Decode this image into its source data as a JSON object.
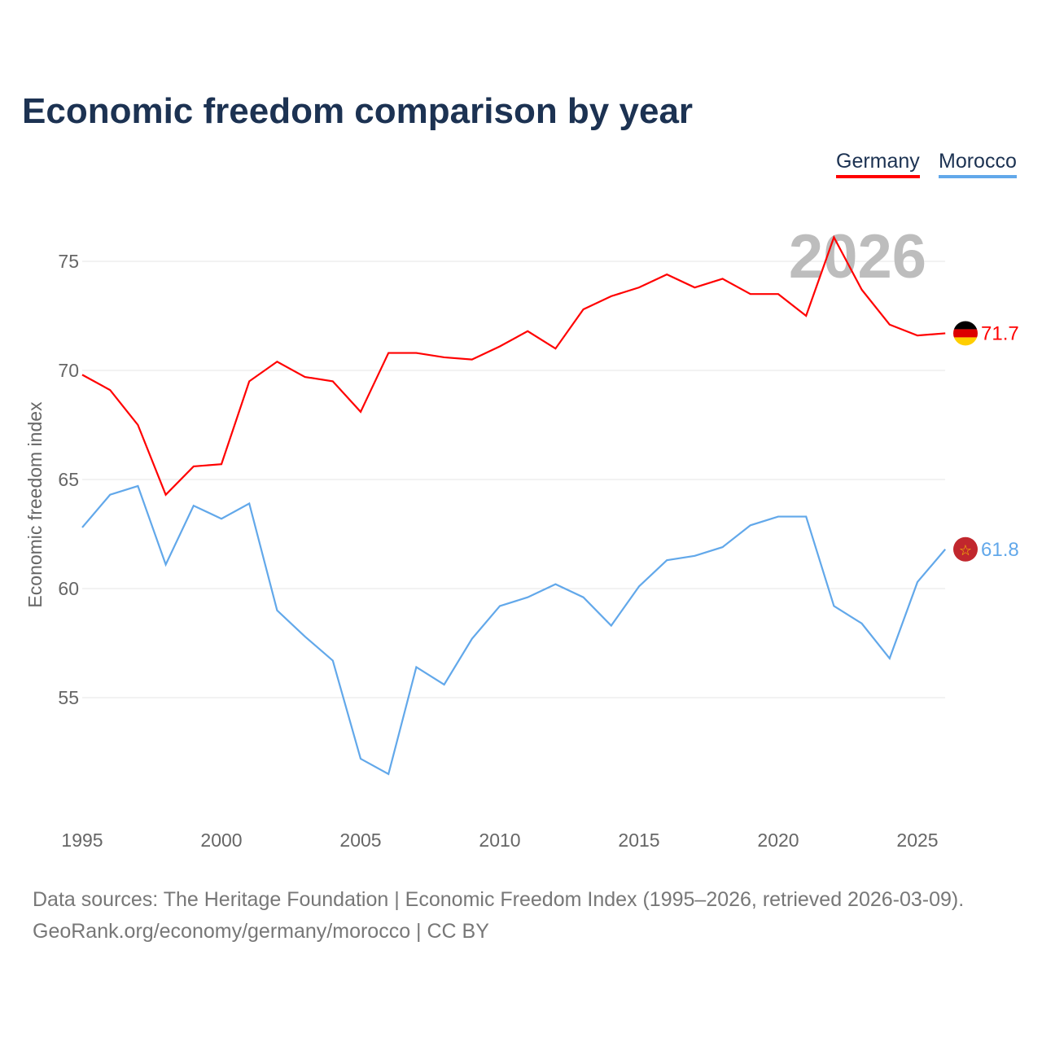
{
  "chart_data": {
    "type": "line",
    "title": "Economic freedom comparison by year",
    "ylabel": "Economic freedom index",
    "xlabel": "",
    "x": [
      1995,
      1996,
      1997,
      1998,
      1999,
      2000,
      2001,
      2002,
      2003,
      2004,
      2005,
      2006,
      2007,
      2008,
      2009,
      2010,
      2011,
      2012,
      2013,
      2014,
      2015,
      2016,
      2017,
      2018,
      2019,
      2020,
      2021,
      2022,
      2023,
      2024,
      2025,
      2026
    ],
    "xticks": [
      "1995",
      "2000",
      "2005",
      "2010",
      "2015",
      "2020",
      "2025"
    ],
    "yticks": [
      "55",
      "60",
      "65",
      "70",
      "75"
    ],
    "ylim": [
      50.5,
      77.5
    ],
    "grid": true,
    "watermark_year": "2026",
    "legend_position": "top-right",
    "series": [
      {
        "name": "Germany",
        "color": "#ff0000",
        "end_label": "71.7",
        "values": [
          69.8,
          69.1,
          67.5,
          64.3,
          65.6,
          65.7,
          69.5,
          70.4,
          69.7,
          69.5,
          68.1,
          70.8,
          70.8,
          70.6,
          70.5,
          71.1,
          71.8,
          71.0,
          72.8,
          73.4,
          73.8,
          74.4,
          73.8,
          74.2,
          73.5,
          73.5,
          72.5,
          76.1,
          73.7,
          72.1,
          71.6,
          71.7
        ]
      },
      {
        "name": "Morocco",
        "color": "#62a8ea",
        "end_label": "61.8",
        "values": [
          62.8,
          64.3,
          64.7,
          61.1,
          63.8,
          63.2,
          63.9,
          59.0,
          57.8,
          56.7,
          52.2,
          51.5,
          56.4,
          55.6,
          57.7,
          59.2,
          59.6,
          60.2,
          59.6,
          58.3,
          60.1,
          61.3,
          61.5,
          61.9,
          62.9,
          63.3,
          63.3,
          59.2,
          58.4,
          56.8,
          60.3,
          61.8
        ]
      }
    ]
  },
  "footer": {
    "line1": "Data sources: The Heritage Foundation | Economic Freedom Index (1995–2026, retrieved 2026-03-09).",
    "line2": "GeoRank.org/economy/germany/morocco | CC BY"
  }
}
